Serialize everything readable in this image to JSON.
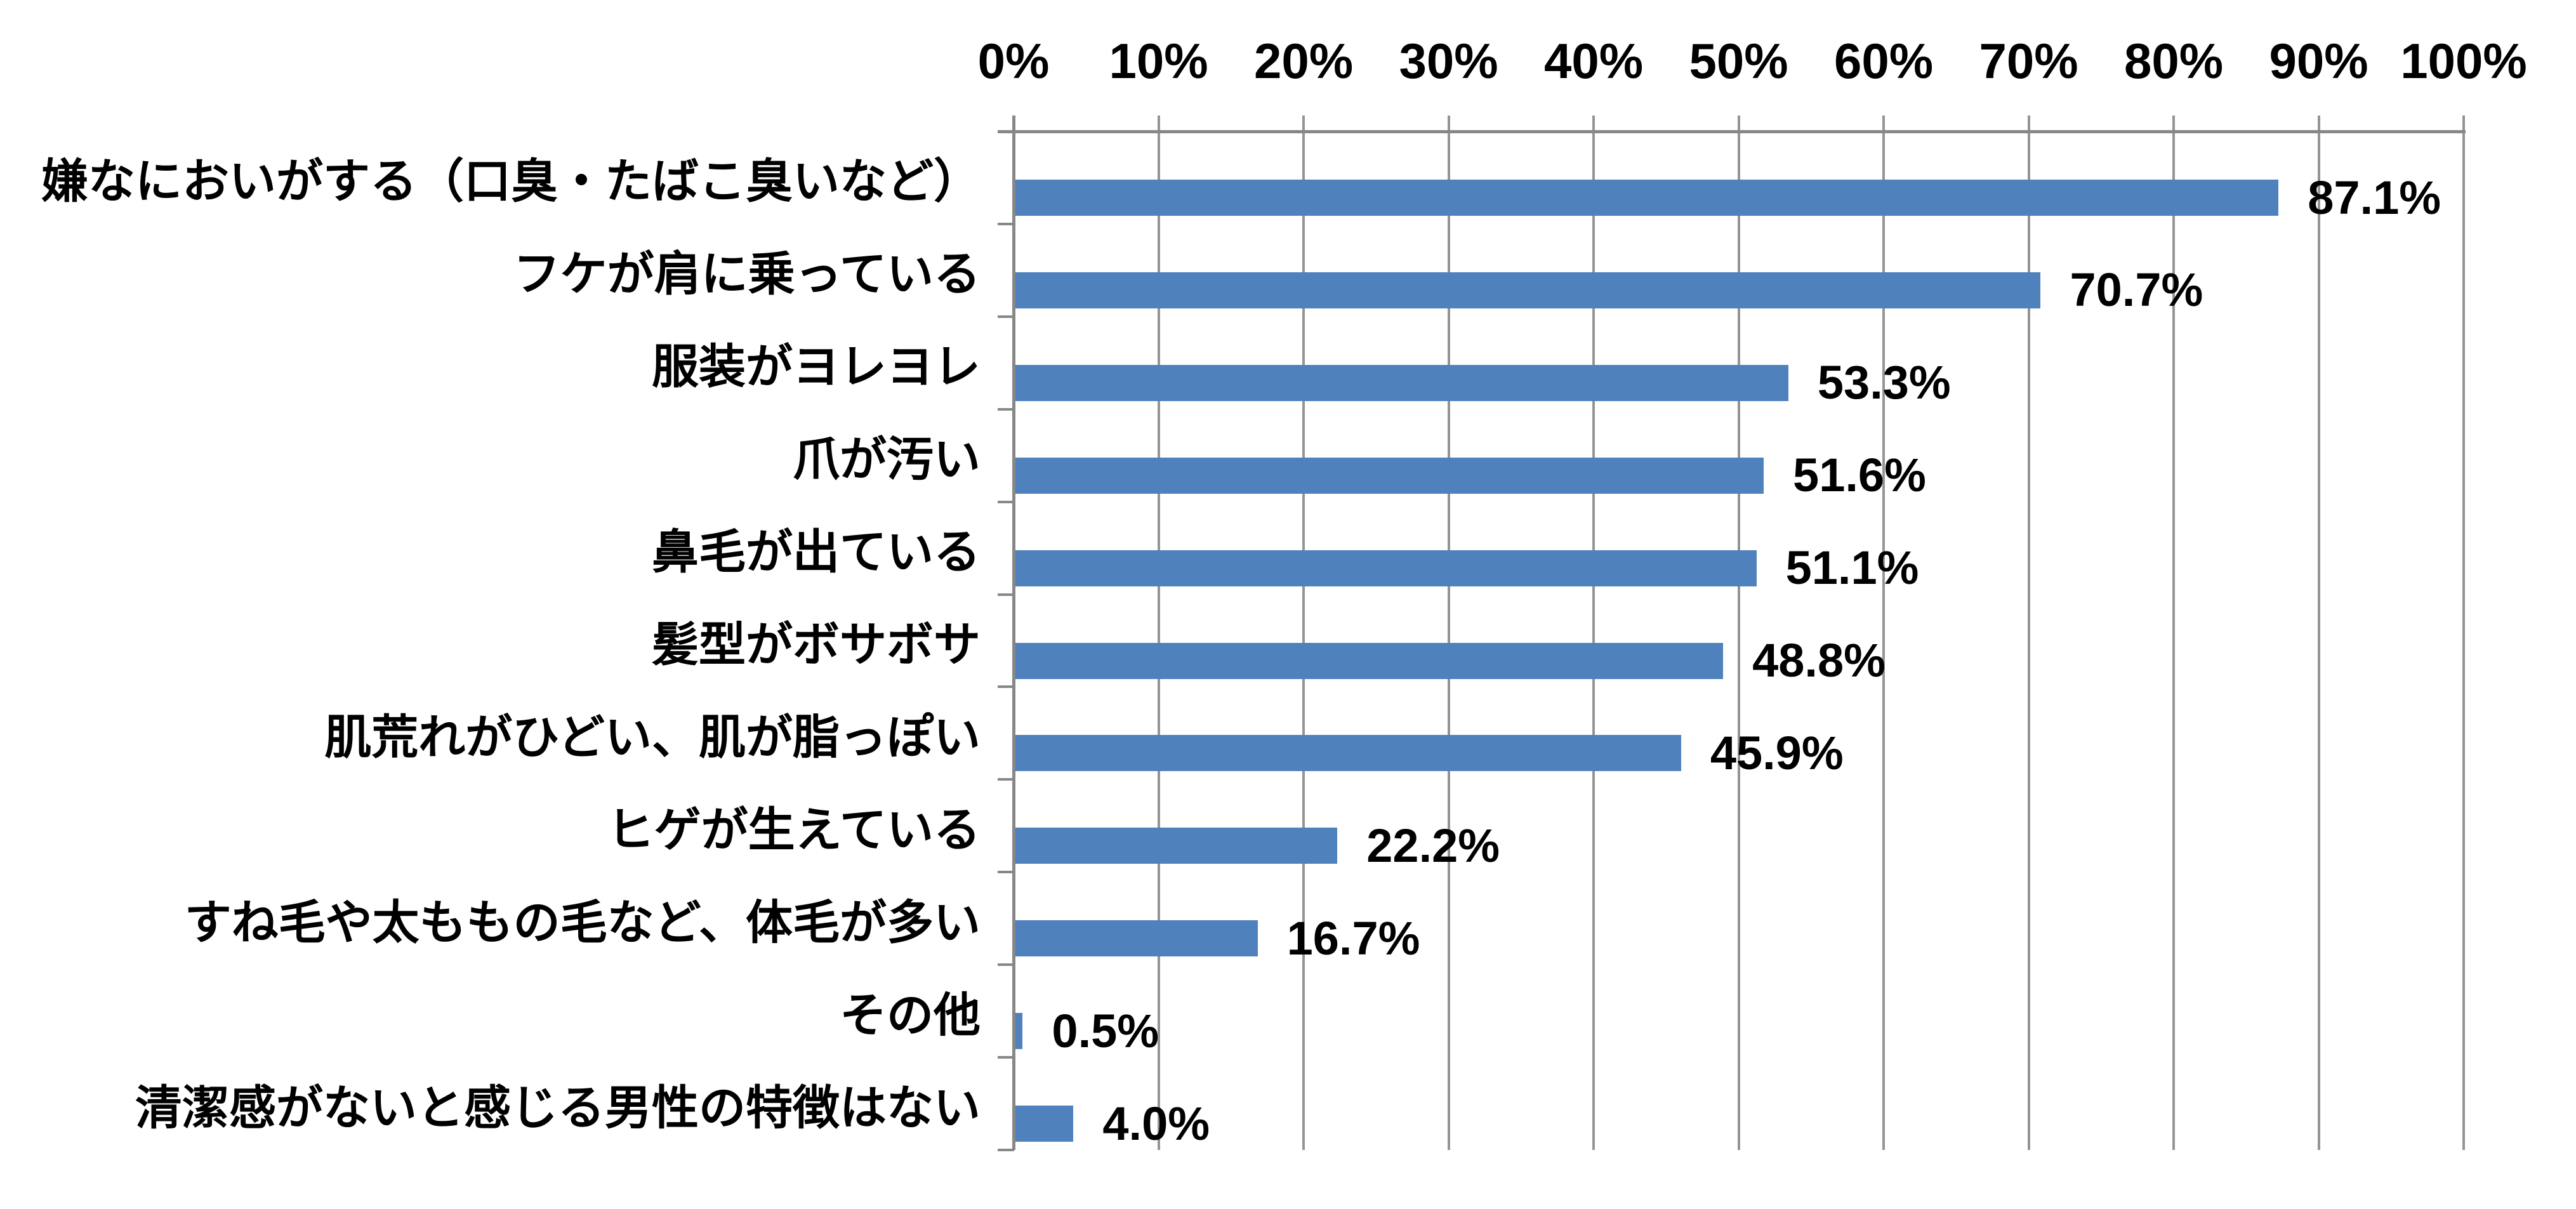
{
  "chart_data": {
    "type": "bar",
    "orientation": "horizontal",
    "title": "",
    "xlabel": "",
    "ylabel": "",
    "xlim": [
      0,
      100
    ],
    "x_tick_step": 10,
    "x_ticks": [
      "0%",
      "10%",
      "20%",
      "30%",
      "40%",
      "50%",
      "60%",
      "70%",
      "80%",
      "90%",
      "100%"
    ],
    "grid": true,
    "legend": false,
    "categories": [
      "嫌なにおいがする（口臭・たばこ臭いなど）",
      "フケが肩に乗っている",
      "服装がヨレヨレ",
      "爪が汚い",
      "鼻毛が出ている",
      "髪型がボサボサ",
      "肌荒れがひどい、肌が脂っぽい",
      "ヒゲが生えている",
      "すね毛や太ももの毛など、体毛が多い",
      "その他",
      "清潔感がないと感じる男性の特徴はない"
    ],
    "values": [
      87.1,
      70.7,
      53.3,
      51.6,
      51.1,
      48.8,
      45.9,
      22.2,
      16.7,
      0.5,
      4.0
    ],
    "value_labels": [
      "87.1%",
      "70.7%",
      "53.3%",
      "51.6%",
      "51.1%",
      "48.8%",
      "45.9%",
      "22.2%",
      "16.7%",
      "0.5%",
      "4.0%"
    ],
    "bar_color": "#4F81BD",
    "gridline_color": "#949494",
    "axis_color": "#878787",
    "text_color": "#000000",
    "background_color": "#FFFFFF"
  }
}
